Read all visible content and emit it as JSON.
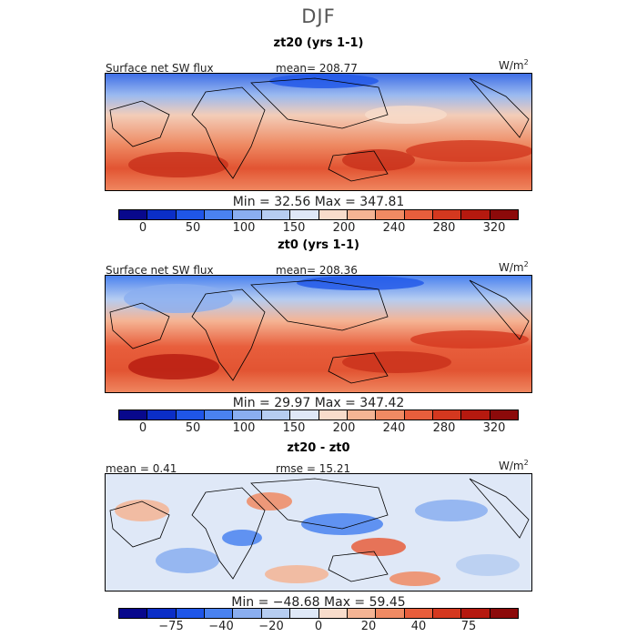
{
  "title": "DJF",
  "chart_data": [
    {
      "type": "heatmap",
      "panel_title": "zt20 (yrs 1-1)",
      "variable": "Surface net SW flux",
      "mean_label": "mean= 208.77",
      "units": "W/m",
      "units_sup": "2",
      "min_max_label": "Min =  32.56  Max = 347.81",
      "min": 32.56,
      "max": 347.81,
      "colorbar_ticks": [
        "0",
        "50",
        "100",
        "150",
        "200",
        "240",
        "280",
        "320"
      ],
      "colors": [
        "#08088c",
        "#0b2ec7",
        "#1f56e8",
        "#4a82f0",
        "#8aaef0",
        "#b6cdf1",
        "#dfe8f7",
        "#f8dccb",
        "#f5b494",
        "#f08a63",
        "#e85e3c",
        "#d4381f",
        "#b5190f",
        "#8c0a0a"
      ]
    },
    {
      "type": "heatmap",
      "panel_title": "zt0 (yrs 1-1)",
      "variable": "Surface net SW flux",
      "mean_label": "mean= 208.36",
      "units": "W/m",
      "units_sup": "2",
      "min_max_label": "Min =  29.97  Max = 347.42",
      "min": 29.97,
      "max": 347.42,
      "colorbar_ticks": [
        "0",
        "50",
        "100",
        "150",
        "200",
        "240",
        "280",
        "320"
      ],
      "colors": [
        "#08088c",
        "#0b2ec7",
        "#1f56e8",
        "#4a82f0",
        "#8aaef0",
        "#b6cdf1",
        "#dfe8f7",
        "#f8dccb",
        "#f5b494",
        "#f08a63",
        "#e85e3c",
        "#d4381f",
        "#b5190f",
        "#8c0a0a"
      ]
    },
    {
      "type": "heatmap",
      "panel_title": "zt20 - zt0",
      "mean_label": "mean =   0.41",
      "rmse_label": "rmse =  15.21",
      "units": "W/m",
      "units_sup": "2",
      "min_max_label": "Min = −48.68  Max =  59.45",
      "min": -48.68,
      "max": 59.45,
      "colorbar_ticks": [
        "−75",
        "−40",
        "−20",
        "0",
        "20",
        "40",
        "75"
      ],
      "colors": [
        "#08088c",
        "#0b2ec7",
        "#1f56e8",
        "#4a82f0",
        "#8aaef0",
        "#b6cdf1",
        "#dfe8f7",
        "#f8dccb",
        "#f5b494",
        "#f08a63",
        "#e85e3c",
        "#d4381f",
        "#b5190f",
        "#8c0a0a"
      ]
    }
  ]
}
